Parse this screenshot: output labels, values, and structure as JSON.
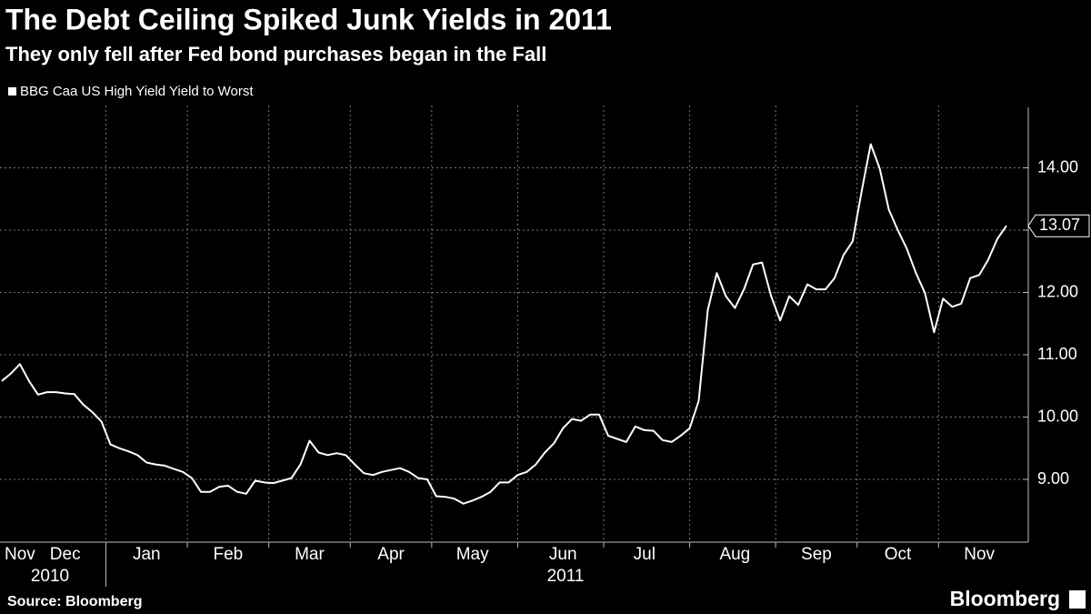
{
  "chart_data": {
    "type": "line",
    "title": "The Debt Ceiling Spiked Junk Yields in 2011",
    "subtitle": "They only fell after Fed bond purchases began in the Fall",
    "source": "Source: Bloomberg",
    "brand": "Bloomberg",
    "year_labels": [
      "2010",
      "2011"
    ],
    "categories": [
      null,
      null,
      "Nov",
      null,
      null,
      null,
      null,
      "Dec",
      null,
      null,
      null,
      null,
      null,
      null,
      null,
      null,
      "Jan",
      null,
      null,
      null,
      null,
      null,
      null,
      null,
      null,
      "Feb",
      null,
      null,
      null,
      null,
      null,
      null,
      null,
      null,
      "Mar",
      null,
      null,
      null,
      null,
      null,
      null,
      null,
      null,
      "Apr",
      null,
      null,
      null,
      null,
      null,
      null,
      null,
      null,
      "May",
      null,
      null,
      null,
      null,
      null,
      null,
      null,
      null,
      null,
      "Jun",
      null,
      null,
      null,
      null,
      null,
      null,
      null,
      null,
      "Jul",
      null,
      null,
      null,
      null,
      null,
      null,
      null,
      null,
      null,
      "Aug",
      null,
      null,
      null,
      null,
      null,
      null,
      null,
      null,
      "Sep",
      null,
      null,
      null,
      null,
      null,
      null,
      null,
      null,
      "Oct",
      null,
      null,
      null,
      null,
      null,
      null,
      null,
      null,
      "Nov",
      null,
      null,
      null
    ],
    "series": [
      {
        "name": "BBG Caa US High Yield Yield to Worst",
        "color": "#ffffff",
        "values": [
          10.58,
          10.7,
          10.85,
          10.58,
          10.36,
          10.4,
          10.4,
          10.38,
          10.37,
          10.2,
          10.08,
          9.93,
          9.56,
          9.5,
          9.45,
          9.39,
          9.27,
          9.24,
          9.22,
          9.17,
          9.12,
          9.02,
          8.8,
          8.8,
          8.88,
          8.9,
          8.8,
          8.77,
          8.98,
          8.95,
          8.94,
          8.98,
          9.02,
          9.24,
          9.62,
          9.43,
          9.39,
          9.42,
          9.39,
          9.24,
          9.1,
          9.07,
          9.12,
          9.15,
          9.18,
          9.12,
          9.02,
          9.0,
          8.73,
          8.72,
          8.69,
          8.61,
          8.66,
          8.72,
          8.8,
          8.95,
          8.95,
          9.07,
          9.12,
          9.24,
          9.43,
          9.58,
          9.82,
          9.97,
          9.94,
          10.04,
          10.04,
          9.7,
          9.65,
          9.6,
          9.85,
          9.79,
          9.78,
          9.63,
          9.6,
          9.7,
          9.82,
          10.26,
          11.72,
          12.31,
          11.94,
          11.75,
          12.05,
          12.45,
          12.48,
          11.94,
          11.55,
          11.94,
          11.8,
          12.13,
          12.05,
          12.05,
          12.23,
          12.6,
          12.82,
          13.62,
          14.38,
          13.99,
          13.33,
          13.0,
          12.7,
          12.31,
          11.99,
          11.36,
          11.9,
          11.77,
          11.82,
          12.23,
          12.28,
          12.53,
          12.86,
          13.07
        ]
      }
    ],
    "ylim": [
      8,
      15
    ],
    "yticks": [
      {
        "value": 9,
        "label": "9.00"
      },
      {
        "value": 10,
        "label": "10.00"
      },
      {
        "value": 11,
        "label": "11.00"
      },
      {
        "value": 12,
        "label": "12.00"
      },
      {
        "value": 13,
        "label": "13.00"
      },
      {
        "value": 14,
        "label": "14.00"
      }
    ],
    "grid": true
  }
}
